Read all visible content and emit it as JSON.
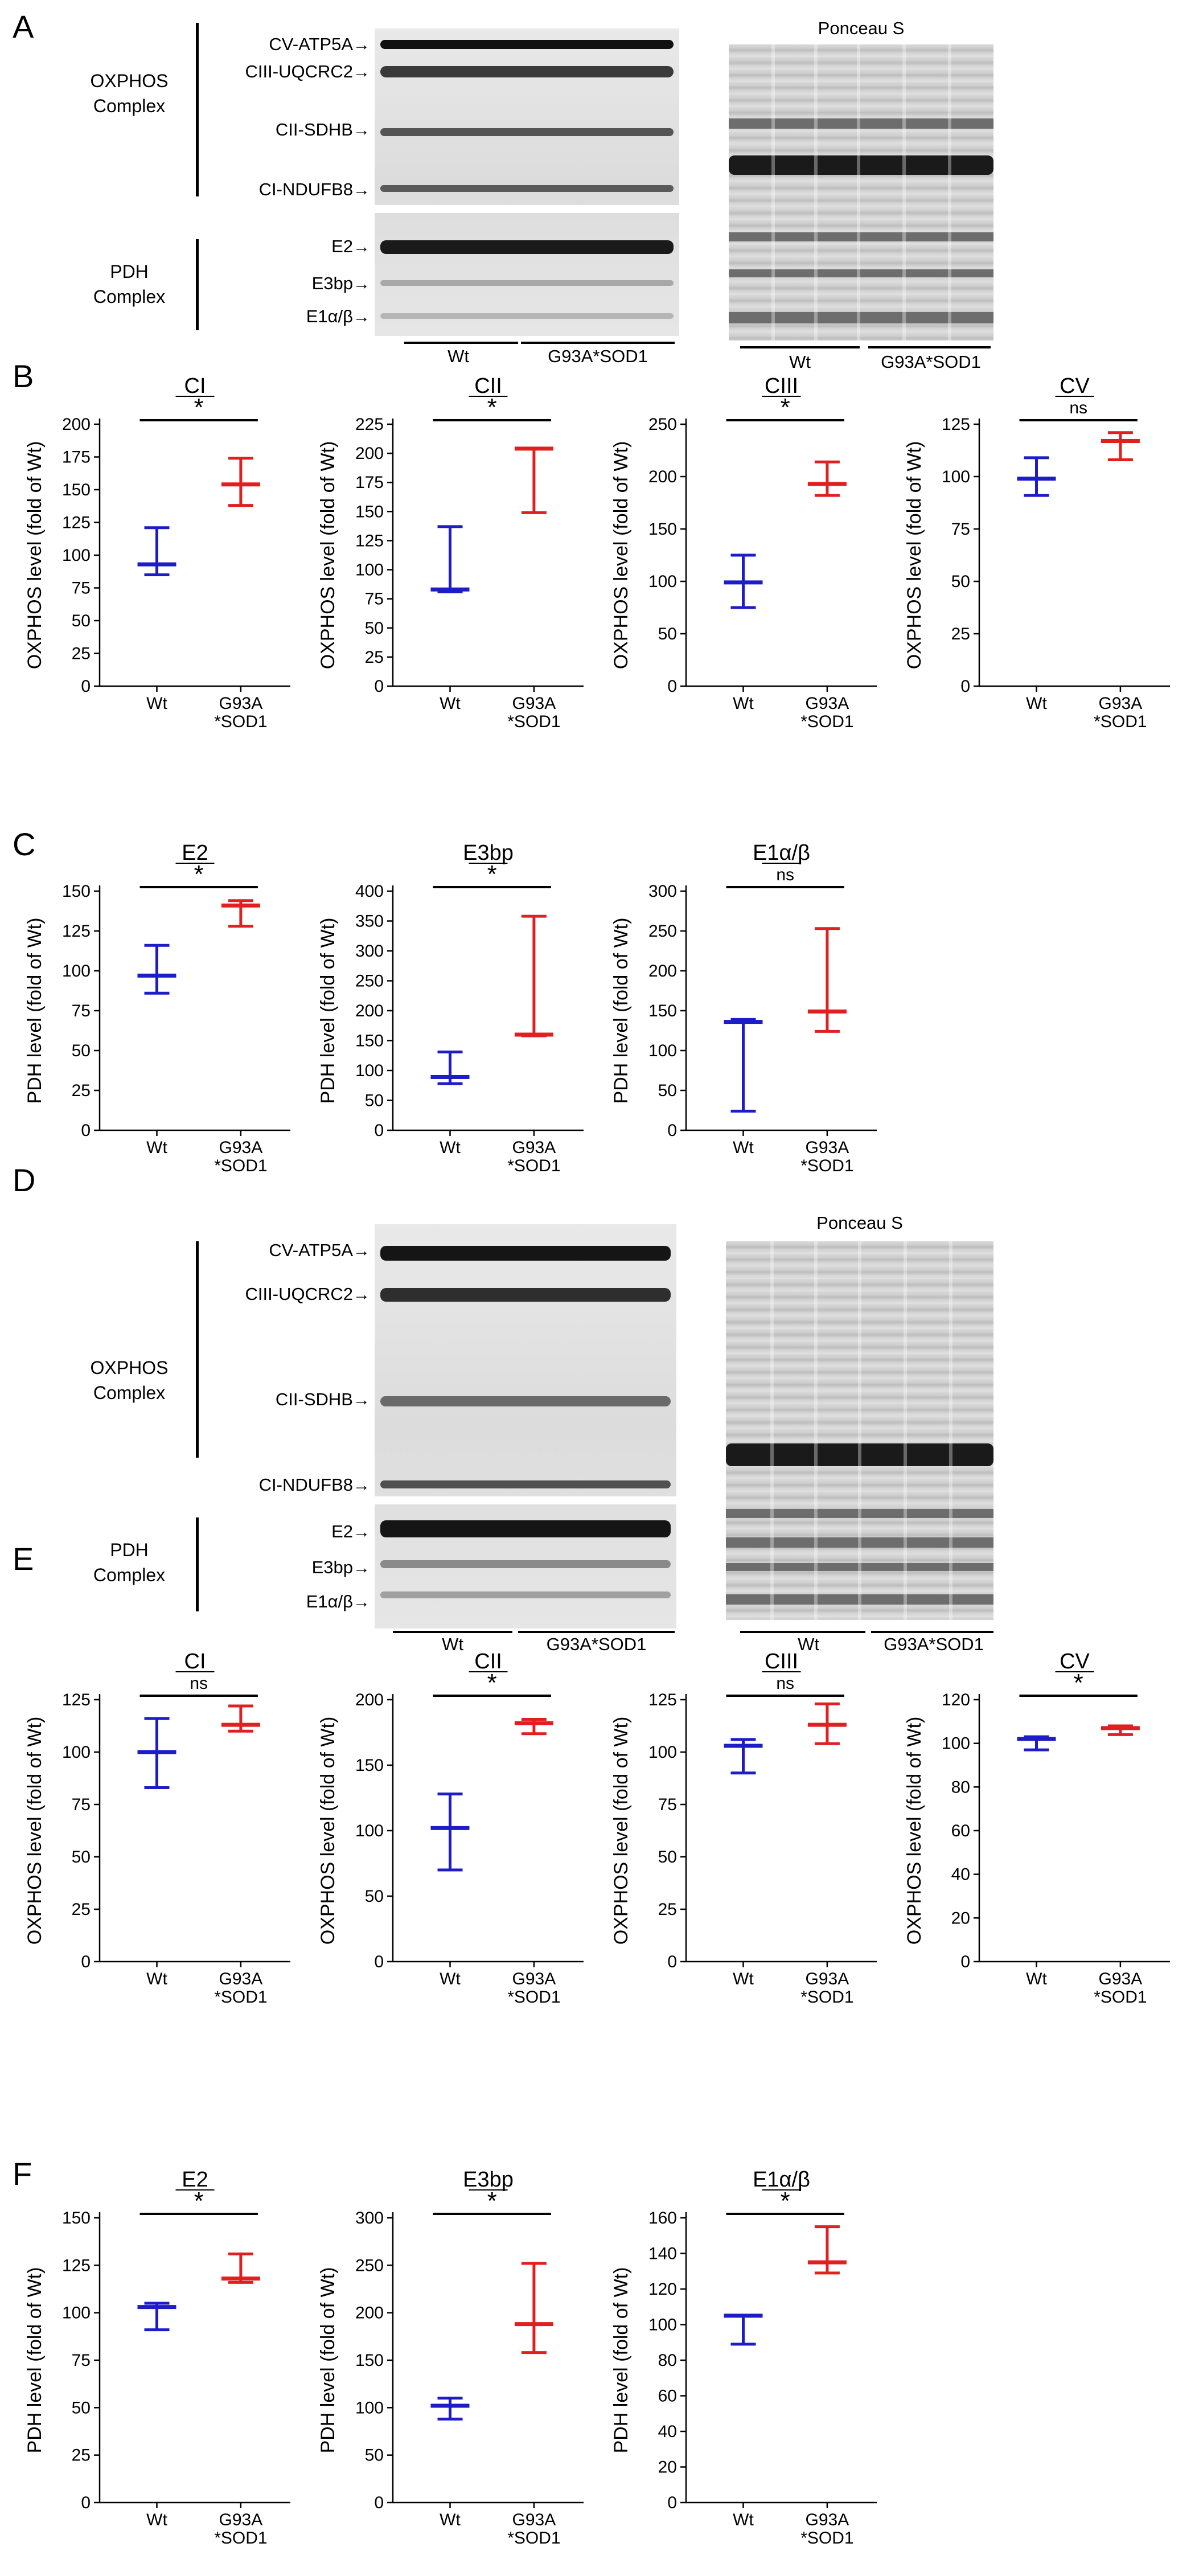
{
  "panels": {
    "A": "A",
    "B": "B",
    "C": "C",
    "D": "D",
    "E": "E",
    "F": "F"
  },
  "blot": {
    "oxphos_labels": [
      "CV-ATP5A",
      "CIII-UQCRC2",
      "CII-SDHB",
      "CI-NDUFB8"
    ],
    "pdh_labels": [
      "E2",
      "E3bp",
      "E1α/β"
    ],
    "oxphos_group": [
      "OXPHOS",
      "Complex"
    ],
    "pdh_group": [
      "PDH",
      "Complex"
    ],
    "lane_wt": "Wt",
    "lane_mut": "G93A*SOD1",
    "ponceau_title": "Ponceau S",
    "arrow": "→"
  },
  "chart_data": [
    {
      "id": "B-CI",
      "panel": "B",
      "type": "scatter",
      "title": "CI",
      "ylabel": "OXPHOS level (fold of Wt)",
      "ylim": [
        0,
        200
      ],
      "yticks": [
        0,
        25,
        50,
        75,
        100,
        125,
        150,
        175,
        200
      ],
      "categories": [
        "Wt",
        "G93A*SOD1"
      ],
      "category_lines": [
        [
          "Wt"
        ],
        [
          "G93A",
          "*SOD1"
        ]
      ],
      "median": [
        93,
        154
      ],
      "low": [
        85,
        138
      ],
      "high": [
        121,
        174
      ],
      "sig": "*",
      "colors": [
        "#1c1cc8",
        "#e02020"
      ]
    },
    {
      "id": "B-CII",
      "panel": "B",
      "type": "scatter",
      "title": "CII",
      "ylabel": "OXPHOS level (fold of Wt)",
      "ylim": [
        0,
        225
      ],
      "yticks": [
        0,
        25,
        50,
        75,
        100,
        125,
        150,
        175,
        200,
        225
      ],
      "categories": [
        "Wt",
        "G93A*SOD1"
      ],
      "category_lines": [
        [
          "Wt"
        ],
        [
          "G93A",
          "*SOD1"
        ]
      ],
      "median": [
        83,
        204
      ],
      "low": [
        81,
        149
      ],
      "high": [
        137,
        204
      ],
      "sig": "*",
      "colors": [
        "#1c1cc8",
        "#e02020"
      ]
    },
    {
      "id": "B-CIII",
      "panel": "B",
      "type": "scatter",
      "title": "CIII",
      "ylabel": "OXPHOS level (fold of Wt)",
      "ylim": [
        0,
        250
      ],
      "yticks": [
        0,
        50,
        100,
        150,
        200,
        250
      ],
      "categories": [
        "Wt",
        "G93A*SOD1"
      ],
      "category_lines": [
        [
          "Wt"
        ],
        [
          "G93A",
          "*SOD1"
        ]
      ],
      "median": [
        99,
        193
      ],
      "low": [
        75,
        182
      ],
      "high": [
        125,
        214
      ],
      "sig": "*",
      "colors": [
        "#1c1cc8",
        "#e02020"
      ]
    },
    {
      "id": "B-CV",
      "panel": "B",
      "type": "scatter",
      "title": "CV",
      "ylabel": "OXPHOS level (fold of Wt)",
      "ylim": [
        0,
        125
      ],
      "yticks": [
        0,
        25,
        50,
        75,
        100,
        125
      ],
      "categories": [
        "Wt",
        "G93A*SOD1"
      ],
      "category_lines": [
        [
          "Wt"
        ],
        [
          "G93A",
          "*SOD1"
        ]
      ],
      "median": [
        99,
        117
      ],
      "low": [
        91,
        108
      ],
      "high": [
        109,
        121
      ],
      "sig": "ns",
      "colors": [
        "#1c1cc8",
        "#e02020"
      ]
    },
    {
      "id": "C-E2",
      "panel": "C",
      "type": "scatter",
      "title": "E2",
      "ylabel": "PDH level (fold of Wt)",
      "ylim": [
        0,
        150
      ],
      "yticks": [
        0,
        25,
        50,
        75,
        100,
        125,
        150
      ],
      "categories": [
        "Wt",
        "G93A*SOD1"
      ],
      "category_lines": [
        [
          "Wt"
        ],
        [
          "G93A",
          "*SOD1"
        ]
      ],
      "median": [
        97,
        141
      ],
      "low": [
        86,
        128
      ],
      "high": [
        116,
        144
      ],
      "sig": "*",
      "colors": [
        "#1c1cc8",
        "#e02020"
      ]
    },
    {
      "id": "C-E3bp",
      "panel": "C",
      "type": "scatter",
      "title": "E3bp",
      "ylabel": "PDH level (fold of Wt)",
      "ylim": [
        0,
        400
      ],
      "yticks": [
        0,
        50,
        100,
        150,
        200,
        250,
        300,
        350,
        400
      ],
      "categories": [
        "Wt",
        "G93A*SOD1"
      ],
      "category_lines": [
        [
          "Wt"
        ],
        [
          "G93A",
          "*SOD1"
        ]
      ],
      "median": [
        89,
        160
      ],
      "low": [
        78,
        158
      ],
      "high": [
        131,
        358
      ],
      "sig": "*",
      "colors": [
        "#1c1cc8",
        "#e02020"
      ]
    },
    {
      "id": "C-E1ab",
      "panel": "C",
      "type": "scatter",
      "title": "E1α/β",
      "ylabel": "PDH level (fold of Wt)",
      "ylim": [
        0,
        300
      ],
      "yticks": [
        0,
        50,
        100,
        150,
        200,
        250,
        300
      ],
      "categories": [
        "Wt",
        "G93A*SOD1"
      ],
      "category_lines": [
        [
          "Wt"
        ],
        [
          "G93A",
          "*SOD1"
        ]
      ],
      "median": [
        136,
        149
      ],
      "low": [
        24,
        124
      ],
      "high": [
        139,
        253
      ],
      "sig": "ns",
      "colors": [
        "#1c1cc8",
        "#e02020"
      ]
    },
    {
      "id": "E-CI",
      "panel": "E",
      "type": "scatter",
      "title": "CI",
      "ylabel": "OXPHOS level (fold of Wt)",
      "ylim": [
        0,
        125
      ],
      "yticks": [
        0,
        25,
        50,
        75,
        100,
        125
      ],
      "categories": [
        "Wt",
        "G93A*SOD1"
      ],
      "category_lines": [
        [
          "Wt"
        ],
        [
          "G93A",
          "*SOD1"
        ]
      ],
      "median": [
        100,
        113
      ],
      "low": [
        83,
        110
      ],
      "high": [
        116,
        122
      ],
      "sig": "ns",
      "colors": [
        "#1c1cc8",
        "#e02020"
      ]
    },
    {
      "id": "E-CII",
      "panel": "E",
      "type": "scatter",
      "title": "CII",
      "ylabel": "OXPHOS level (fold of Wt)",
      "ylim": [
        0,
        200
      ],
      "yticks": [
        0,
        50,
        100,
        150,
        200
      ],
      "categories": [
        "Wt",
        "G93A*SOD1"
      ],
      "category_lines": [
        [
          "Wt"
        ],
        [
          "G93A",
          "*SOD1"
        ]
      ],
      "median": [
        102,
        182
      ],
      "low": [
        70,
        174
      ],
      "high": [
        128,
        185
      ],
      "sig": "*",
      "colors": [
        "#1c1cc8",
        "#e02020"
      ]
    },
    {
      "id": "E-CIII",
      "panel": "E",
      "type": "scatter",
      "title": "CIII",
      "ylabel": "OXPHOS level (fold of Wt)",
      "ylim": [
        0,
        125
      ],
      "yticks": [
        0,
        25,
        50,
        75,
        100,
        125
      ],
      "categories": [
        "Wt",
        "G93A*SOD1"
      ],
      "category_lines": [
        [
          "Wt"
        ],
        [
          "G93A",
          "*SOD1"
        ]
      ],
      "median": [
        103,
        113
      ],
      "low": [
        90,
        104
      ],
      "high": [
        106,
        123
      ],
      "sig": "ns",
      "colors": [
        "#1c1cc8",
        "#e02020"
      ]
    },
    {
      "id": "E-CV",
      "panel": "E",
      "type": "scatter",
      "title": "CV",
      "ylabel": "OXPHOS level (fold of Wt)",
      "ylim": [
        0,
        120
      ],
      "yticks": [
        0,
        20,
        40,
        60,
        80,
        100,
        120
      ],
      "categories": [
        "Wt",
        "G93A*SOD1"
      ],
      "category_lines": [
        [
          "Wt"
        ],
        [
          "G93A",
          "*SOD1"
        ]
      ],
      "median": [
        102,
        107
      ],
      "low": [
        97,
        104
      ],
      "high": [
        103,
        108
      ],
      "sig": "*",
      "colors": [
        "#1c1cc8",
        "#e02020"
      ]
    },
    {
      "id": "F-E2",
      "panel": "F",
      "type": "scatter",
      "title": "E2",
      "ylabel": "PDH level (fold of Wt)",
      "ylim": [
        0,
        150
      ],
      "yticks": [
        0,
        25,
        50,
        75,
        100,
        125,
        150
      ],
      "categories": [
        "Wt",
        "G93A*SOD1"
      ],
      "category_lines": [
        [
          "Wt"
        ],
        [
          "G93A",
          "*SOD1"
        ]
      ],
      "median": [
        103,
        118
      ],
      "low": [
        91,
        116
      ],
      "high": [
        105,
        131
      ],
      "sig": "*",
      "colors": [
        "#1c1cc8",
        "#e02020"
      ]
    },
    {
      "id": "F-E3bp",
      "panel": "F",
      "type": "scatter",
      "title": "E3bp",
      "ylabel": "PDH level (fold of Wt)",
      "ylim": [
        0,
        300
      ],
      "yticks": [
        0,
        50,
        100,
        150,
        200,
        250,
        300
      ],
      "categories": [
        "Wt",
        "G93A*SOD1"
      ],
      "category_lines": [
        [
          "Wt"
        ],
        [
          "G93A",
          "*SOD1"
        ]
      ],
      "median": [
        102,
        188
      ],
      "low": [
        88,
        158
      ],
      "high": [
        110,
        252
      ],
      "sig": "*",
      "colors": [
        "#1c1cc8",
        "#e02020"
      ]
    },
    {
      "id": "F-E1ab",
      "panel": "F",
      "type": "scatter",
      "title": "E1α/β",
      "ylabel": "PDH level (fold of Wt)",
      "ylim": [
        0,
        160
      ],
      "yticks": [
        0,
        20,
        40,
        60,
        80,
        100,
        120,
        140,
        160
      ],
      "categories": [
        "Wt",
        "G93A*SOD1"
      ],
      "category_lines": [
        [
          "Wt"
        ],
        [
          "G93A",
          "*SOD1"
        ]
      ],
      "median": [
        105,
        135
      ],
      "low": [
        89,
        129
      ],
      "high": [
        105,
        155
      ],
      "sig": "*",
      "colors": [
        "#1c1cc8",
        "#e02020"
      ]
    }
  ]
}
